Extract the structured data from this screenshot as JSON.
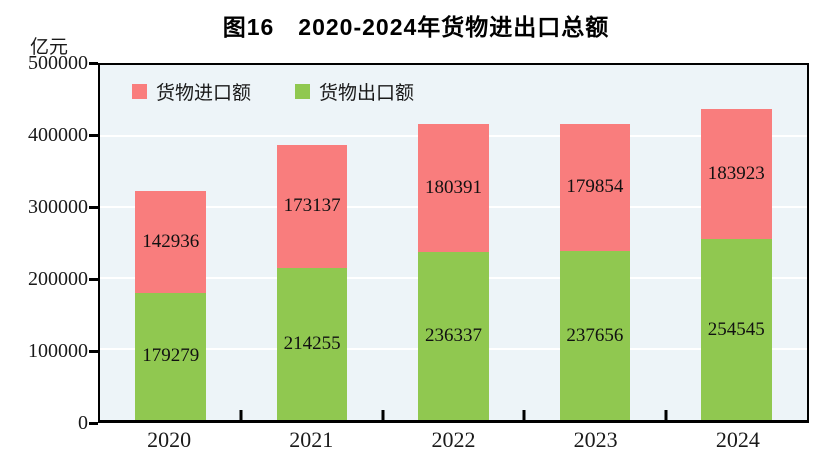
{
  "title": "图16　2020-2024年货物进出口总额",
  "unit_label": "亿元",
  "legend": [
    {
      "label": "货物进口额",
      "color": "#f97d7d"
    },
    {
      "label": "货物出口额",
      "color": "#90c850"
    }
  ],
  "chart_data": {
    "type": "bar",
    "stacked": true,
    "title": "图16　2020-2024年货物进出口总额",
    "ylabel": "亿元",
    "categories": [
      "2020",
      "2021",
      "2022",
      "2023",
      "2024"
    ],
    "series": [
      {
        "name": "货物出口额",
        "color": "#90c850",
        "values": [
          179279,
          214255,
          236337,
          237656,
          254545
        ]
      },
      {
        "name": "货物进口额",
        "color": "#f97d7d",
        "values": [
          142936,
          173137,
          180391,
          179854,
          183923
        ]
      }
    ],
    "ylim": [
      0,
      500000
    ],
    "y_ticks": [
      0,
      100000,
      200000,
      300000,
      400000,
      500000
    ],
    "grid": true,
    "gridline_color": "#ffffff",
    "plot_background": "#edf4f8",
    "axis_color": "#000000",
    "legend_position": "top-left-inside"
  }
}
